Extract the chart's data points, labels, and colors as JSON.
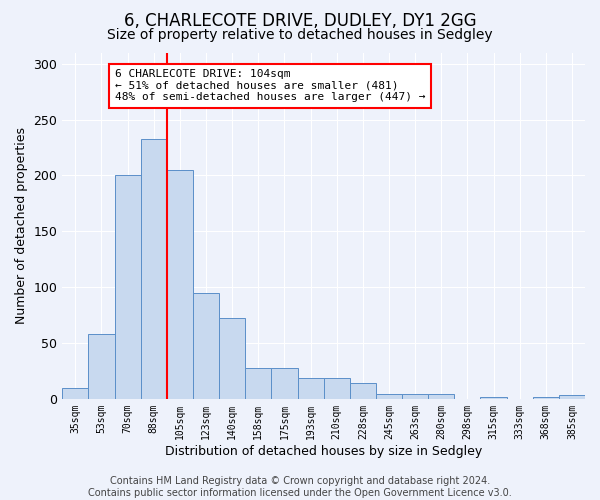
{
  "title": "6, CHARLECOTE DRIVE, DUDLEY, DY1 2GG",
  "subtitle": "Size of property relative to detached houses in Sedgley",
  "xlabel": "Distribution of detached houses by size in Sedgley",
  "ylabel": "Number of detached properties",
  "bar_values": [
    10,
    58,
    200,
    233,
    205,
    95,
    72,
    28,
    28,
    19,
    19,
    14,
    4,
    4,
    4,
    0,
    2,
    0,
    2,
    3
  ],
  "bar_labels": [
    "35sqm",
    "53sqm",
    "70sqm",
    "88sqm",
    "105sqm",
    "123sqm",
    "140sqm",
    "158sqm",
    "175sqm",
    "193sqm",
    "210sqm",
    "228sqm",
    "245sqm",
    "263sqm",
    "280sqm",
    "298sqm",
    "315sqm",
    "333sqm",
    "368sqm",
    "385sqm"
  ],
  "bar_color": "#c8d9ef",
  "bar_edge_color": "#5b8fc9",
  "annotation_line1": "6 CHARLECOTE DRIVE: 104sqm",
  "annotation_line2": "← 51% of detached houses are smaller (481)",
  "annotation_line3": "48% of semi-detached houses are larger (447) →",
  "annotation_box_color": "white",
  "annotation_box_edge_color": "red",
  "vline_color": "red",
  "ylim": [
    0,
    310
  ],
  "yticks": [
    0,
    50,
    100,
    150,
    200,
    250,
    300
  ],
  "background_color": "#eef2fb",
  "footer_text": "Contains HM Land Registry data © Crown copyright and database right 2024.\nContains public sector information licensed under the Open Government Licence v3.0.",
  "title_fontsize": 12,
  "subtitle_fontsize": 10,
  "xlabel_fontsize": 9,
  "ylabel_fontsize": 9,
  "annotation_fontsize": 8,
  "footer_fontsize": 7
}
